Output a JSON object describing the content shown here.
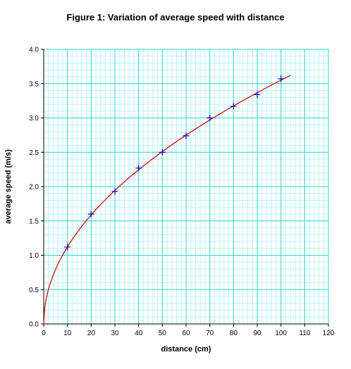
{
  "chart_data": {
    "type": "scatter",
    "title": "Figure 1: Variation of average speed with distance",
    "xlabel": "distance (cm)",
    "ylabel": "average speed (m/s)",
    "xlim": [
      0,
      120
    ],
    "ylim": [
      0,
      4.0
    ],
    "xticks": [
      "0",
      "10",
      "20",
      "30",
      "40",
      "50",
      "60",
      "70",
      "80",
      "90",
      "100",
      "110",
      "120"
    ],
    "yticks": [
      "0.0",
      "0.5",
      "1.0",
      "1.5",
      "2.0",
      "2.5",
      "3.0",
      "3.5",
      "4.0"
    ],
    "grid": true,
    "legend": "none",
    "series": [
      {
        "kind": "points",
        "marker": "plus",
        "color": "#0000cc",
        "x": [
          10,
          20,
          30,
          40,
          50,
          60,
          70,
          80,
          90,
          100
        ],
        "y": [
          1.12,
          1.6,
          1.93,
          2.27,
          2.5,
          2.74,
          3.0,
          3.17,
          3.34,
          3.57
        ]
      },
      {
        "kind": "fit-line",
        "color": "#cc0000",
        "x_range": [
          0,
          104
        ],
        "function": "y = 0.355 * x^0.5"
      }
    ]
  }
}
